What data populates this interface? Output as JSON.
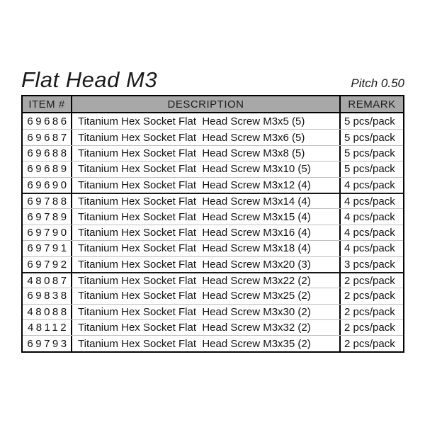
{
  "page": {
    "title": "Flat Head M3",
    "pitch": "Pitch 0.50"
  },
  "table": {
    "headers": [
      "ITEM #",
      "DESCRIPTION",
      "REMARK"
    ],
    "rows": [
      {
        "item": "69686",
        "description": "Titanium Hex Socket Flat  Head Screw M3x5 (5)",
        "remark": "5 pcs/pack"
      },
      {
        "item": "69687",
        "description": "Titanium Hex Socket Flat  Head Screw M3x6 (5)",
        "remark": "5 pcs/pack"
      },
      {
        "item": "69688",
        "description": "Titanium Hex Socket Flat  Head Screw M3x8 (5)",
        "remark": "5 pcs/pack"
      },
      {
        "item": "69689",
        "description": "Titanium Hex Socket Flat  Head Screw M3x10 (5)",
        "remark": "5 pcs/pack"
      },
      {
        "item": "69690",
        "description": "Titanium Hex Socket Flat  Head Screw M3x12 (4)",
        "remark": "4 pcs/pack"
      },
      {
        "item": "69788",
        "description": "Titanium Hex Socket Flat  Head Screw M3x14 (4)",
        "remark": "4 pcs/pack"
      },
      {
        "item": "69789",
        "description": "Titanium Hex Socket Flat  Head Screw M3x15 (4)",
        "remark": "4 pcs/pack"
      },
      {
        "item": "69790",
        "description": "Titanium Hex Socket Flat  Head Screw M3x16 (4)",
        "remark": "4 pcs/pack"
      },
      {
        "item": "69791",
        "description": "Titanium Hex Socket Flat  Head Screw M3x18 (4)",
        "remark": "4 pcs/pack"
      },
      {
        "item": "69792",
        "description": "Titanium Hex Socket Flat  Head Screw M3x20 (3)",
        "remark": "3 pcs/pack"
      },
      {
        "item": "48087",
        "description": "Titanium Hex Socket Flat  Head Screw M3x22 (2)",
        "remark": "2 pcs/pack"
      },
      {
        "item": "69838",
        "description": "Titanium Hex Socket Flat  Head Screw M3x25 (2)",
        "remark": "2 pcs/pack"
      },
      {
        "item": "48088",
        "description": "Titanium Hex Socket Flat  Head Screw M3x30 (2)",
        "remark": "2 pcs/pack"
      },
      {
        "item": "48112",
        "description": "Titanium Hex Socket Flat  Head Screw M3x32 (2)",
        "remark": "2 pcs/pack"
      },
      {
        "item": "69793",
        "description": "Titanium Hex Socket Flat  Head Screw M3x35 (2)",
        "remark": "2 pcs/pack"
      }
    ],
    "group_separators_after_rows": [
      5,
      10
    ],
    "colors": {
      "header_bg": "#a8a8a8",
      "border": "#000000",
      "row_line": "#c0c0c0",
      "group_line": "#161616"
    }
  }
}
